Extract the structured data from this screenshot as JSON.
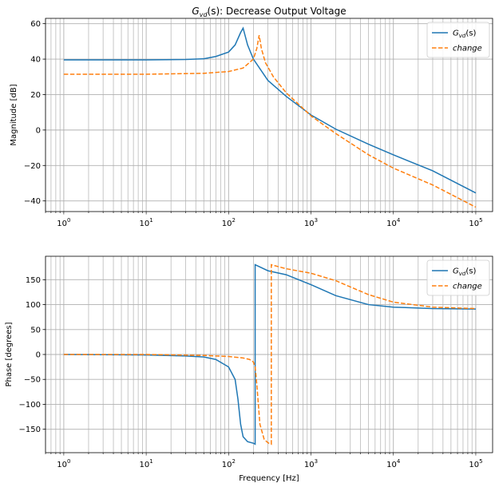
{
  "chart_data": [
    {
      "type": "line",
      "title": "Decrease Output Voltage",
      "title_prefix": "G",
      "title_sub": "vd",
      "title_suffix": "(s): ",
      "xlabel": "",
      "ylabel": "Magnitude [dB]",
      "x_scale": "log",
      "xlim": [
        0.6,
        160000
      ],
      "ylim": [
        -46,
        63
      ],
      "yticks": [
        60,
        40,
        20,
        0,
        -20,
        -40
      ],
      "xtick_exponents": [
        "0",
        "1",
        "2",
        "3",
        "4",
        "5"
      ],
      "grid": true,
      "legend": "top-right",
      "series": [
        {
          "name_prefix": "G",
          "name_sub": "vd",
          "name_suffix": "(s)",
          "color": "#1f77b4",
          "dash": "solid",
          "x": [
            1,
            10,
            30,
            50,
            70,
            100,
            120,
            140,
            150,
            170,
            200,
            300,
            500,
            1000,
            2000,
            5000,
            10000,
            30000,
            100000
          ],
          "y": [
            39.6,
            39.6,
            39.8,
            40.2,
            41.5,
            44.0,
            48.0,
            55.0,
            57.5,
            48.0,
            40.0,
            28.0,
            19.0,
            8.5,
            0.5,
            -8.0,
            -14.0,
            -23.0,
            -35.5
          ]
        },
        {
          "name": "change",
          "color": "#ff7f0e",
          "dash": "dashed",
          "x": [
            1,
            10,
            50,
            100,
            150,
            200,
            220,
            235,
            250,
            280,
            350,
            500,
            1000,
            2000,
            5000,
            10000,
            30000,
            100000
          ],
          "y": [
            31.5,
            31.5,
            32.0,
            33.0,
            35.0,
            40.0,
            46.0,
            53.5,
            46.0,
            38.0,
            30.0,
            21.0,
            8.0,
            -2.0,
            -14.0,
            -21.5,
            -31.0,
            -43.5
          ]
        }
      ]
    },
    {
      "type": "line",
      "title": "",
      "xlabel": "Frequency [Hz]",
      "ylabel": "Phase [degrees]",
      "x_scale": "log",
      "xlim": [
        0.6,
        160000
      ],
      "ylim": [
        -197,
        197
      ],
      "yticks": [
        150,
        100,
        50,
        0,
        -50,
        -100,
        -150
      ],
      "xtick_exponents": [
        "0",
        "1",
        "2",
        "3",
        "4",
        "5"
      ],
      "grid": true,
      "legend": "top-right",
      "series": [
        {
          "name_prefix": "G",
          "name_sub": "vd",
          "name_suffix": "(s)",
          "color": "#1f77b4",
          "dash": "solid",
          "x": [
            1,
            10,
            30,
            50,
            70,
            100,
            120,
            130,
            140,
            150,
            170,
            200,
            210,
            210,
            300,
            500,
            1000,
            2000,
            5000,
            10000,
            30000,
            100000
          ],
          "y": [
            0,
            -1,
            -3,
            -5,
            -10,
            -25,
            -50,
            -90,
            -140,
            -165,
            -175,
            -178,
            -180,
            180,
            168,
            160,
            140,
            118,
            100,
            95,
            92,
            91
          ]
        },
        {
          "name": "change",
          "color": "#ff7f0e",
          "dash": "dashed",
          "x": [
            1,
            10,
            50,
            100,
            150,
            180,
            200,
            210,
            220,
            240,
            270,
            300,
            330,
            330,
            500,
            1000,
            2000,
            5000,
            10000,
            30000,
            100000
          ],
          "y": [
            0,
            0,
            -2,
            -4,
            -7,
            -10,
            -15,
            -25,
            -60,
            -140,
            -170,
            -177,
            -180,
            180,
            172,
            163,
            148,
            120,
            105,
            95,
            92
          ]
        }
      ]
    }
  ]
}
